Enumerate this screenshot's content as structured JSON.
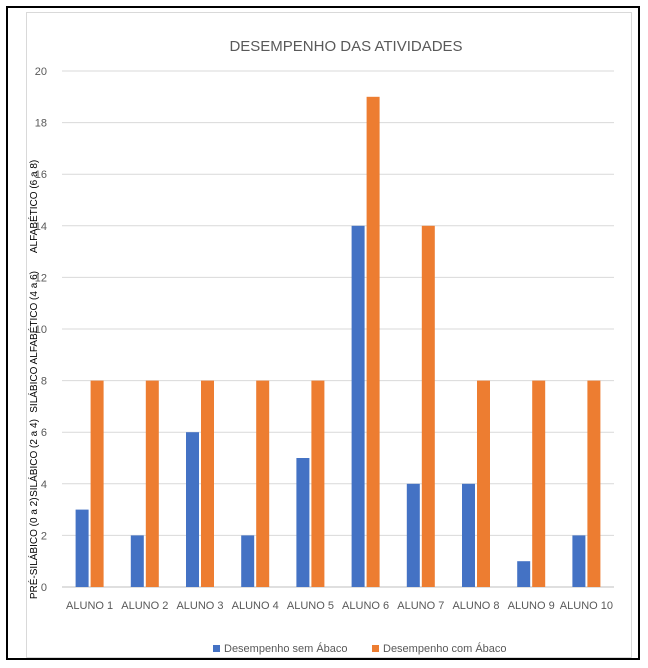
{
  "chart_data": {
    "type": "bar",
    "title": "DESEMPENHO DAS ATIVIDADES",
    "categories": [
      "ALUNO 1",
      "ALUNO 2",
      "ALUNO 3",
      "ALUNO 4",
      "ALUNO 5",
      "ALUNO 6",
      "ALUNO 7",
      "ALUNO 8",
      "ALUNO 9",
      "ALUNO 10"
    ],
    "series": [
      {
        "name": "Desempenho sem Ábaco",
        "color": "#4472c4",
        "values": [
          3,
          2,
          6,
          2,
          5,
          14,
          4,
          4,
          1,
          2
        ]
      },
      {
        "name": "Desempenho com Ábaco",
        "color": "#ed7d31",
        "values": [
          8,
          8,
          8,
          8,
          8,
          19,
          14,
          8,
          8,
          8
        ]
      }
    ],
    "ylim": [
      0,
      20
    ],
    "yticks": [
      0,
      2,
      4,
      6,
      8,
      10,
      12,
      14,
      16,
      18,
      20
    ],
    "grid": true,
    "legend": "bottom",
    "level_labels": [
      {
        "label": "PRÉ-SILÁBICO (0 a 2)",
        "from": 0,
        "to": 3
      },
      {
        "label": "SILÁBICO (2 a 4)",
        "from": 3,
        "to": 7
      },
      {
        "label": "SILÁBICO ALFABÉTICO (4 a 6)",
        "from": 7,
        "to": 12
      },
      {
        "label": "ALFABÉTICO (6 a 8)",
        "from": 12,
        "to": 17.5
      }
    ]
  }
}
